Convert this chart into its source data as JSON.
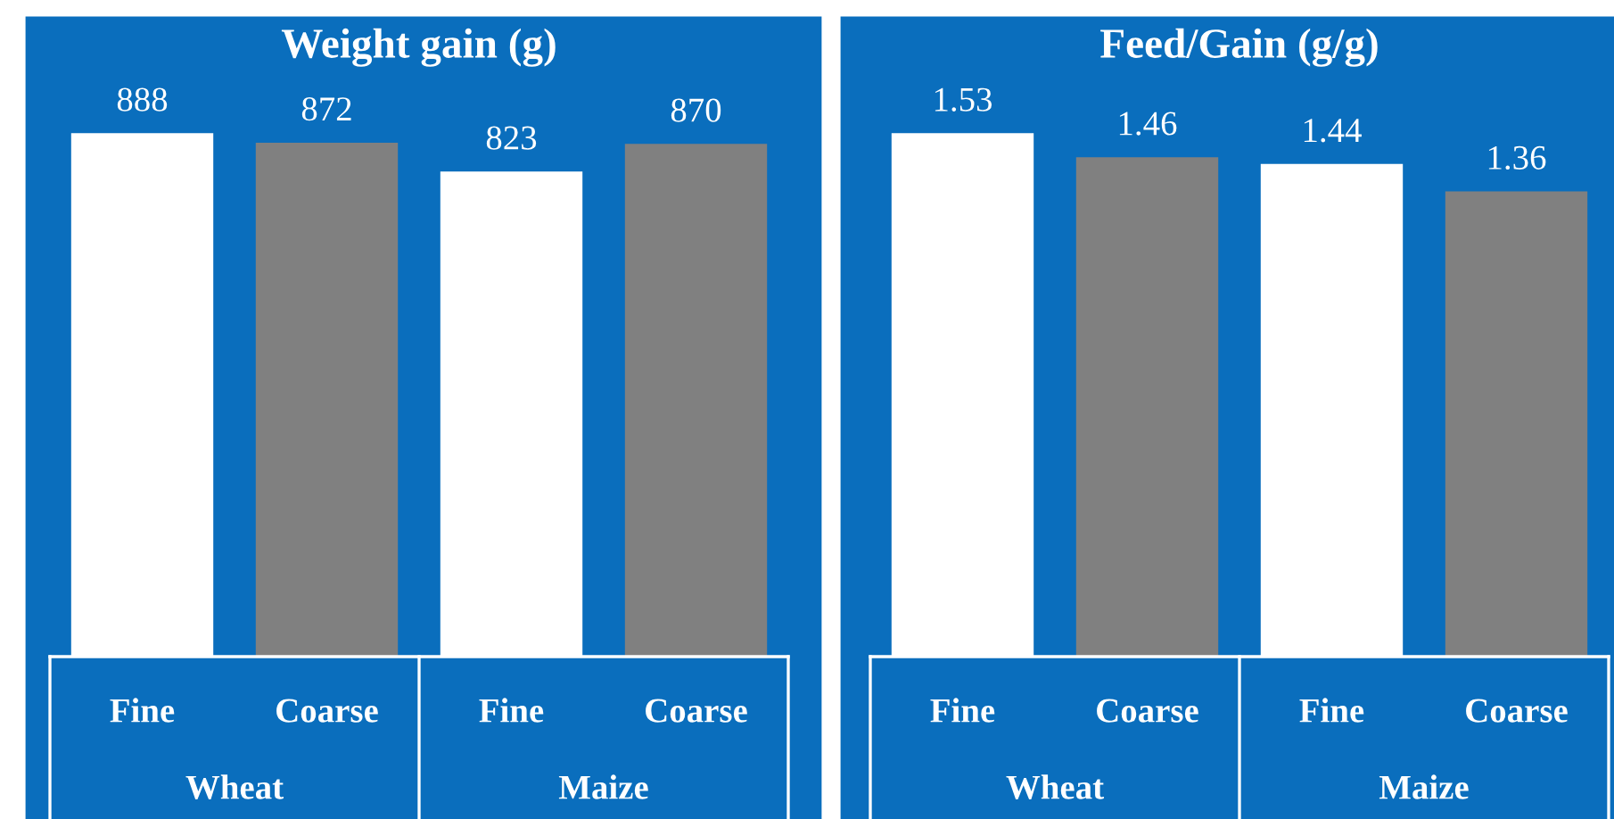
{
  "chart_data": [
    {
      "type": "bar",
      "title": "Weight gain (g)",
      "categories": [
        "Fine",
        "Coarse",
        "Fine",
        "Coarse"
      ],
      "values": [
        888,
        872,
        823,
        870
      ],
      "colors": [
        "#ffffff",
        "#808080",
        "#ffffff",
        "#808080"
      ],
      "data_labels": true,
      "annotations": [
        "Wheat",
        "Maize"
      ]
    },
    {
      "type": "bar",
      "title": "Feed/Gain (g/g)",
      "categories": [
        "Fine",
        "Coarse",
        "Fine",
        "Coarse"
      ],
      "values": [
        1.53,
        1.46,
        1.44,
        1.36
      ],
      "colors": [
        "#ffffff",
        "#808080",
        "#ffffff",
        "#808080"
      ],
      "data_labels": true,
      "annotations": [
        "Wheat",
        "Maize"
      ]
    }
  ]
}
